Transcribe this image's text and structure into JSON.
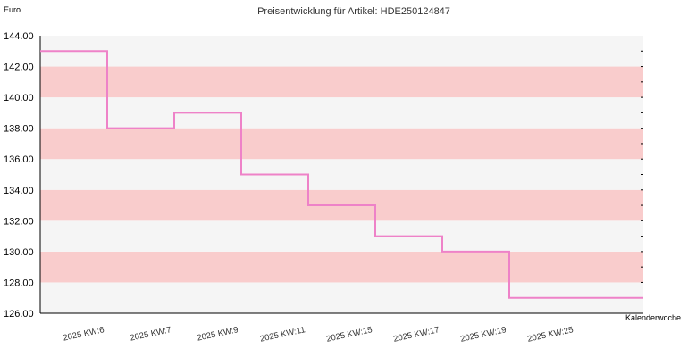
{
  "chart_data": {
    "type": "line",
    "step": true,
    "title": "Preisentwicklung für Artikel: HDE250124847",
    "ylabel": "Euro",
    "xlabel": "Kalenderwoche",
    "ylim": [
      126,
      144
    ],
    "y_ticks": [
      "144.00",
      "142.00",
      "140.00",
      "138.00",
      "136.00",
      "134.00",
      "132.00",
      "130.00",
      "128.00",
      "126.00"
    ],
    "categories": [
      "2025 KW:6",
      "2025 KW:7",
      "2025 KW:9",
      "2025 KW:11",
      "2025 KW:15",
      "2025 KW:17",
      "2025 KW:19",
      "2025 KW:25"
    ],
    "series": [
      {
        "values": [
          143,
          138,
          139,
          135,
          133,
          131,
          130,
          127
        ]
      }
    ],
    "colors": {
      "line": "#ee82c8",
      "band_light": "#f5f5f5",
      "band_dark": "#f9cccc"
    },
    "grid": true
  }
}
